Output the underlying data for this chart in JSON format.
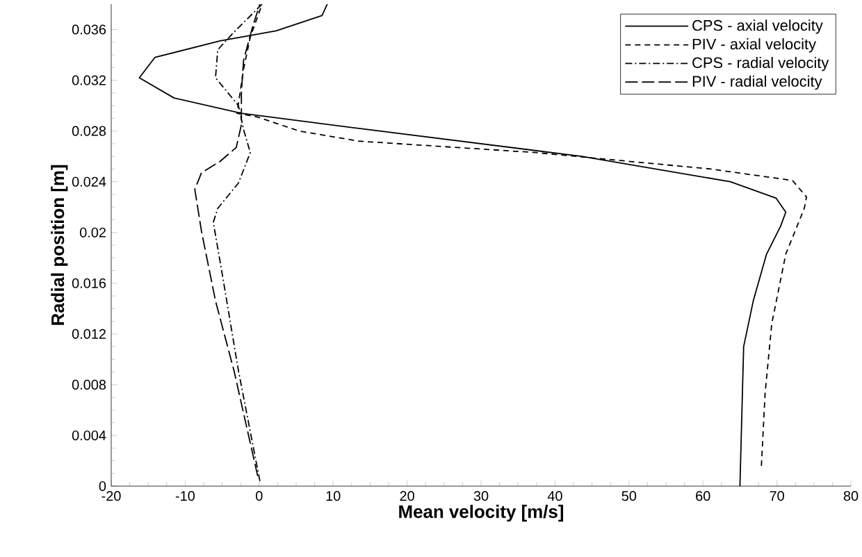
{
  "chart_data": {
    "type": "line",
    "xlabel": "Mean velocity [m/s]",
    "ylabel": "Radial position [m]",
    "xlim": [
      -20,
      80
    ],
    "ylim": [
      0,
      0.038
    ],
    "xticks": [
      -20,
      -10,
      0,
      10,
      20,
      30,
      40,
      50,
      60,
      70,
      80
    ],
    "yticks": [
      0,
      0.004,
      0.008,
      0.012,
      0.016,
      0.02,
      0.024,
      0.028,
      0.032,
      0.036
    ],
    "grid": false,
    "legend": "top right",
    "marker": "none",
    "series": [
      {
        "name": "CPS - axial velocity",
        "color": "#000000",
        "line_style": "solid",
        "x": [
          65.0,
          65.5,
          66.8,
          68.6,
          70.5,
          71.2,
          69.9,
          63.7,
          43.6,
          13.5,
          -2.4,
          -11.5,
          -16.2,
          -14.1,
          -5.3,
          2.3,
          8.5,
          9.2
        ],
        "values": [
          0,
          0.011,
          0.0146,
          0.0183,
          0.0205,
          0.0216,
          0.0227,
          0.024,
          0.026,
          0.0282,
          0.0294,
          0.0306,
          0.0322,
          0.0338,
          0.0351,
          0.0359,
          0.0371,
          0.038
        ]
      },
      {
        "name": "PIV - axial velocity",
        "color": "#000000",
        "line_style": "dashed",
        "x": [
          67.9,
          68.4,
          69.3,
          71.2,
          73.7,
          74.0,
          72.1,
          61.1,
          37.4,
          13.5,
          5.4,
          -0.2,
          -3.0,
          -2.1,
          -1.2,
          0.4
        ],
        "values": [
          0.0016,
          0.0073,
          0.0128,
          0.0183,
          0.0219,
          0.0228,
          0.0241,
          0.025,
          0.0263,
          0.0272,
          0.028,
          0.0291,
          0.0294,
          0.0329,
          0.0354,
          0.038
        ]
      },
      {
        "name": "CPS - radial velocity",
        "color": "#000000",
        "line_style": "dashdot",
        "x": [
          0.1,
          -2.8,
          -4.9,
          -6.2,
          -5.6,
          -2.8,
          -1.2,
          -2.1,
          -2.8,
          -5.9,
          -5.6,
          -3.4,
          0.4
        ],
        "values": [
          0.0004,
          0.0091,
          0.0164,
          0.0208,
          0.0219,
          0.0239,
          0.0263,
          0.0281,
          0.03,
          0.0322,
          0.0344,
          0.0358,
          0.038
        ]
      },
      {
        "name": "PIV - radial velocity",
        "color": "#000000",
        "line_style": "longdashed",
        "x": [
          -0.2,
          -3.4,
          -5.9,
          -7.8,
          -8.7,
          -7.8,
          -5.3,
          -3.1,
          -2.4,
          -2.4,
          -2.1,
          -0.9,
          0.1
        ],
        "values": [
          0.0008,
          0.0091,
          0.0146,
          0.0201,
          0.0234,
          0.0247,
          0.0256,
          0.0267,
          0.0285,
          0.0311,
          0.0336,
          0.0362,
          0.038
        ]
      }
    ]
  }
}
